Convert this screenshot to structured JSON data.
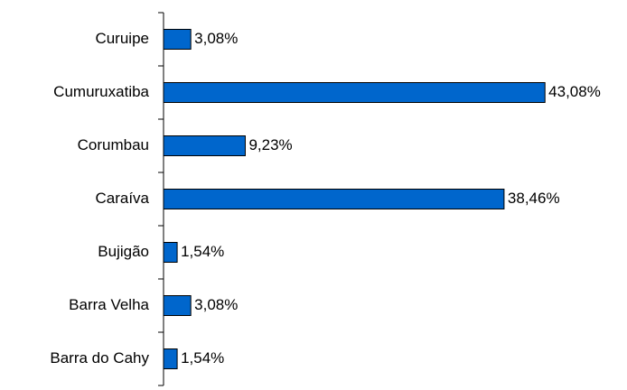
{
  "chart_data": {
    "type": "barh",
    "categories": [
      "Curuipe",
      "Cumuruxatiba",
      "Corumbau",
      "Caraíva",
      "Bujigão",
      "Barra Velha",
      "Barra do Cahy"
    ],
    "values": [
      3.08,
      43.08,
      9.23,
      38.46,
      1.54,
      3.08,
      1.54
    ],
    "value_labels": [
      "3,08%",
      "43,08%",
      "9,23%",
      "38,46%",
      "1,54%",
      "3,08%",
      "1,54%"
    ],
    "color": "#0066cc",
    "xlim": [
      0,
      45
    ]
  }
}
